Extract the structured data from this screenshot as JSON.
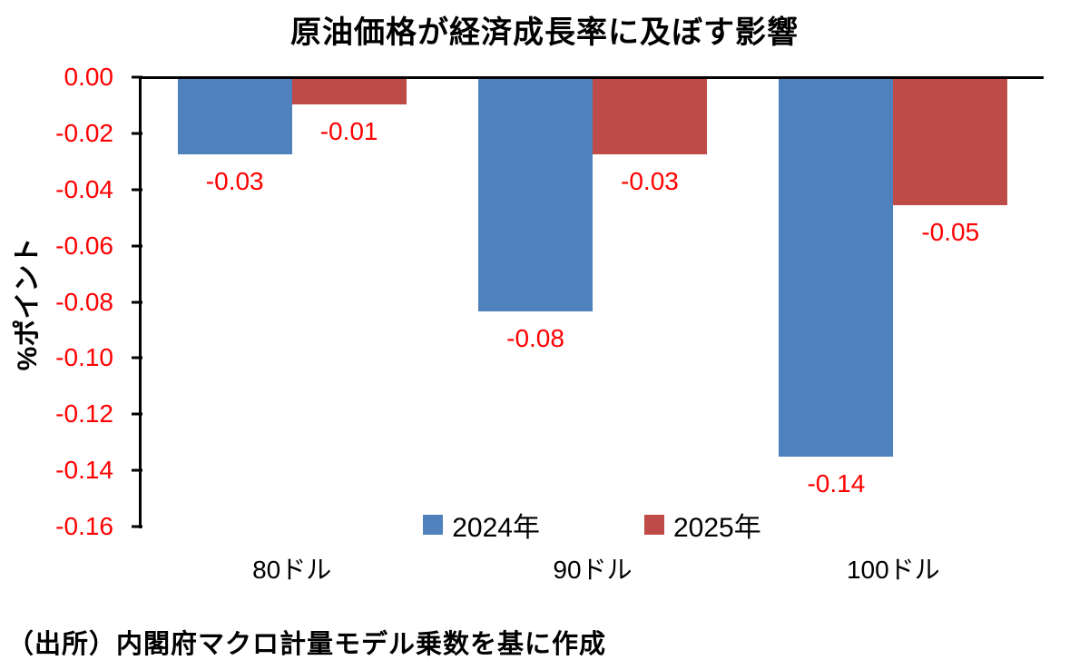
{
  "chart_data": {
    "type": "bar",
    "title": "原油価格が経済成長率に及ぼす影響",
    "ylabel": "%ポイント",
    "categories": [
      "80ドル",
      "90ドル",
      "100ドル"
    ],
    "series": [
      {
        "name": "2024年",
        "color": "#4F81BD",
        "values": [
          -0.027,
          -0.083,
          -0.135
        ],
        "labels": [
          "-0.03",
          "-0.08",
          "-0.14"
        ]
      },
      {
        "name": "2025年",
        "color": "#BE4B48",
        "values": [
          -0.009,
          -0.027,
          -0.045
        ],
        "labels": [
          "-0.01",
          "-0.03",
          "-0.05"
        ]
      }
    ],
    "ylim": [
      -0.16,
      0.0
    ],
    "yticks": [
      0.0,
      -0.02,
      -0.04,
      -0.06,
      -0.08,
      -0.1,
      -0.12,
      -0.14,
      -0.16
    ],
    "ytick_labels": [
      "0.00",
      "-0.02",
      "-0.04",
      "-0.06",
      "-0.08",
      "-0.10",
      "-0.12",
      "-0.14",
      "-0.16"
    ],
    "grid": false,
    "legend_position": "bottom",
    "tick_color": "#FF0000",
    "data_label_color": "#FF0000"
  },
  "source_note": "（出所）内閣府マクロ計量モデル乗数を基に作成"
}
